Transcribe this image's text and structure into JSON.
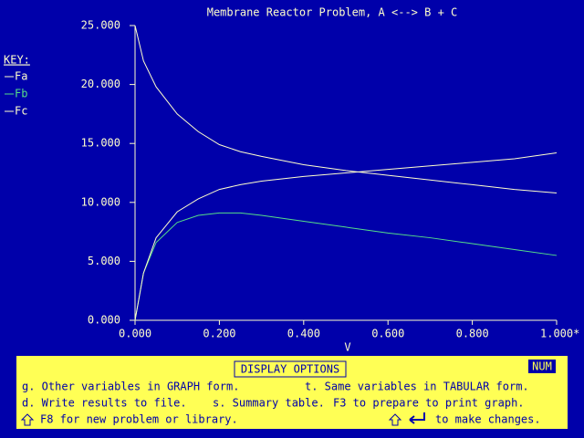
{
  "chart_data": {
    "type": "line",
    "title": "Membrane Reactor Problem, A <--> B + C",
    "x_label": "V",
    "legend_title": "KEY:",
    "x": [
      0,
      0.02,
      0.05,
      0.1,
      0.15,
      0.2,
      0.25,
      0.3,
      0.4,
      0.5,
      0.6,
      0.7,
      0.8,
      0.9,
      1.0
    ],
    "series": [
      {
        "name": "Fa",
        "color": "#ffffcc",
        "values": [
          25,
          22,
          19.8,
          17.5,
          16.0,
          14.9,
          14.3,
          13.9,
          13.2,
          12.7,
          12.3,
          11.9,
          11.5,
          11.1,
          10.8
        ]
      },
      {
        "name": "Fb",
        "color": "#55dd88",
        "values": [
          0,
          4,
          6.6,
          8.3,
          8.9,
          9.1,
          9.1,
          8.9,
          8.4,
          7.9,
          7.4,
          7.0,
          6.5,
          6.0,
          5.5
        ]
      },
      {
        "name": "Fc",
        "color": "#ffffcc",
        "values": [
          0,
          4,
          7,
          9.2,
          10.3,
          11.1,
          11.5,
          11.8,
          12.2,
          12.5,
          12.8,
          13.1,
          13.4,
          13.7,
          14.2
        ]
      }
    ],
    "xlim": [
      0,
      1
    ],
    "ylim": [
      0,
      25
    ],
    "xticks": [
      {
        "value": 0,
        "label": "0.000"
      },
      {
        "value": 0.2,
        "label": "0.200"
      },
      {
        "value": 0.4,
        "label": "0.400"
      },
      {
        "value": 0.6,
        "label": "0.600"
      },
      {
        "value": 0.8,
        "label": "0.800"
      },
      {
        "value": 1,
        "label": "1.000*"
      }
    ],
    "yticks": [
      {
        "value": 0,
        "label": "0.000"
      },
      {
        "value": 5,
        "label": "5.000"
      },
      {
        "value": 10,
        "label": "10.000"
      },
      {
        "value": 15,
        "label": "15.000"
      },
      {
        "value": 20,
        "label": "20.000"
      },
      {
        "value": 25,
        "label": "25.000"
      }
    ],
    "grid": false
  },
  "panel": {
    "title": "DISPLAY OPTIONS",
    "status": "NUM",
    "lines": [
      "g. Other variables in GRAPH form.",
      "t. Same variables in TABULAR form.",
      "d. Write results to file.",
      "s. Summary table.",
      "F3 to prepare to print graph.",
      "F8 for new problem or library.",
      "to make changes."
    ]
  }
}
